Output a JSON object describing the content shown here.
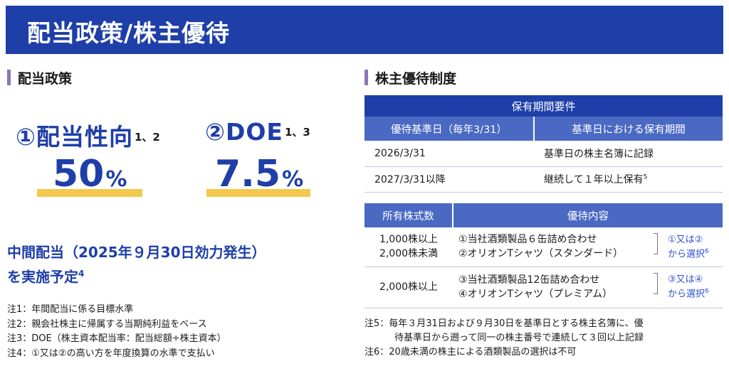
{
  "banner": {
    "title": "配当政策/株主優待"
  },
  "left": {
    "section_title": "配当政策",
    "kpis": [
      {
        "label": "①配当性向",
        "sup": "1、2",
        "value": "50",
        "unit": "%"
      },
      {
        "label": "②DOE",
        "sup": "1、3",
        "value": "7.5",
        "unit": "%"
      }
    ],
    "interim": {
      "line1": "中間配当（2025年９月30日効力発生）",
      "line2": "を実施予定",
      "sup": "4"
    },
    "notes": [
      "注1：年間配当に係る目標水準",
      "注2：親会社株主に帰属する当期純利益をベース",
      "注3：DOE（株主資本配当率：配当総額÷株主資本）",
      "注4：①又は②の高い方を年度換算の水準で支払い"
    ]
  },
  "right": {
    "section_title": "株主優待制度",
    "period_table": {
      "header": "保有期間要件",
      "col1": "優待基準日（毎年3/31）",
      "col2": "基準日における保有期間",
      "rows": [
        {
          "date": "2026/3/31",
          "req": "基準日の株主名簿に記録",
          "sup": ""
        },
        {
          "date": "2027/3/31以降",
          "req": "継続して１年以上保有",
          "sup": "5"
        }
      ]
    },
    "benefit_table": {
      "col1": "所有株式数",
      "col2": "優待内容",
      "rows": [
        {
          "count_line1": "1,000株以上",
          "count_line2": "2,000株未満",
          "item1": "①当社酒類製品６缶詰め合わせ",
          "item2": "②オリオンTシャツ（スタンダード）",
          "choice_line1": "①又は②",
          "choice_line2": "から選択",
          "choice_sup": "6"
        },
        {
          "count_line1": "2,000株以上",
          "count_line2": "",
          "item1": "③当社酒類製品12缶詰め合わせ",
          "item2": "④オリオンTシャツ（プレミアム）",
          "choice_line1": "③又は④",
          "choice_line2": "から選択",
          "choice_sup": "6"
        }
      ]
    },
    "notes": [
      {
        "prefix": "注5：",
        "text": "毎年３月31日および９月30日を基準日とする株主名簿に、優",
        "cont": "待基準日から遡って同一の株主番号で連続して３回以上記録"
      },
      {
        "prefix": "注6：",
        "text": "20歳未満の株主による酒類製品の選択は不可",
        "cont": ""
      }
    ]
  }
}
